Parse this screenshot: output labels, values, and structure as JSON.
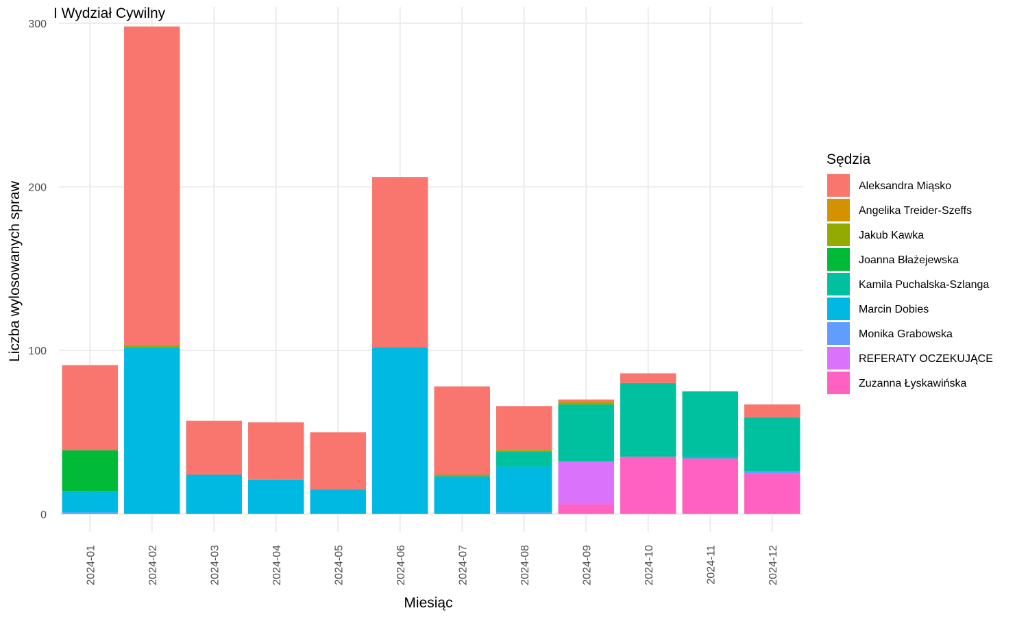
{
  "chart_data": {
    "type": "bar",
    "stacked": true,
    "title": "I Wydział Cywilny",
    "xlabel": "Miesiąc",
    "ylabel": "Liczba wylosowanych spraw",
    "ylim": [
      -11,
      310
    ],
    "yticks": [
      0,
      100,
      200,
      300
    ],
    "grid": true,
    "legend_title": "Sędzia",
    "legend_position": "right",
    "categories": [
      "2024-01",
      "2024-02",
      "2024-03",
      "2024-04",
      "2024-05",
      "2024-06",
      "2024-07",
      "2024-08",
      "2024-09",
      "2024-10",
      "2024-11",
      "2024-12"
    ],
    "series": [
      {
        "name": "Zuzanna Łyskawińska",
        "color": "#FF61C3",
        "values": [
          0,
          0,
          0,
          0,
          0,
          0,
          0,
          0,
          6,
          35,
          34,
          25
        ]
      },
      {
        "name": "REFERATY OCZEKUJĄCE",
        "color": "#DB72FB",
        "values": [
          0,
          0,
          0,
          0,
          0,
          0,
          0,
          0,
          26,
          0,
          0,
          0
        ]
      },
      {
        "name": "Monika Grabowska",
        "color": "#619CFF",
        "values": [
          1,
          0,
          0,
          0,
          0,
          0,
          0,
          1,
          0,
          0,
          0,
          1
        ]
      },
      {
        "name": "Marcin Dobies",
        "color": "#00B9E3",
        "values": [
          13,
          102,
          24,
          21,
          15,
          102,
          23,
          28,
          0,
          0,
          1,
          0
        ]
      },
      {
        "name": "Kamila Puchalska-Szlanga",
        "color": "#00C19F",
        "values": [
          0,
          0,
          0,
          0,
          0,
          0,
          0,
          9,
          35,
          45,
          40,
          33
        ]
      },
      {
        "name": "Joanna Błażejewska",
        "color": "#00BA38",
        "values": [
          25,
          0,
          0,
          0,
          0,
          0,
          0,
          0,
          0,
          0,
          0,
          0
        ]
      },
      {
        "name": "Jakub Kawka",
        "color": "#93AA00",
        "values": [
          0,
          1,
          0,
          0,
          0,
          0,
          1,
          1,
          1,
          0,
          0,
          0
        ]
      },
      {
        "name": "Angelika Treider-Szeffs",
        "color": "#D39200",
        "values": [
          0,
          0,
          0,
          0,
          0,
          0,
          0,
          0,
          1,
          0,
          0,
          0
        ]
      },
      {
        "name": "Aleksandra Miąsko",
        "color": "#F8766D",
        "values": [
          52,
          195,
          33,
          35,
          35,
          104,
          54,
          27,
          1,
          6,
          0,
          8
        ]
      }
    ],
    "legend_order": [
      "Aleksandra Miąsko",
      "Angelika Treider-Szeffs",
      "Jakub Kawka",
      "Joanna Błażejewska",
      "Kamila Puchalska-Szlanga",
      "Marcin Dobies",
      "Monika Grabowska",
      "REFERATY OCZEKUJĄCE",
      "Zuzanna Łyskawińska"
    ]
  }
}
